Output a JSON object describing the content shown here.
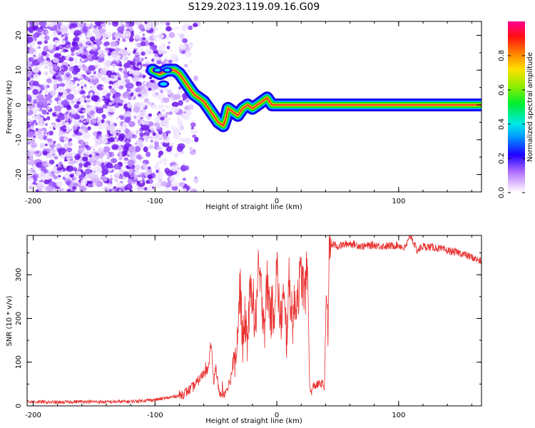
{
  "title": "S129.2023.119.09.16.G09",
  "colors": {
    "snr_line": "#e8302e",
    "ridge_high": "#e8302e",
    "ridge_mid": "#10e000",
    "ridge_low": "#1000f0",
    "background_speckle": "#8a3cf0"
  },
  "chart_data": [
    {
      "type": "heatmap",
      "title": "",
      "xlabel": "Height of straight line (km)",
      "ylabel": "Frequency (Hz)",
      "xlim": [
        -205,
        168
      ],
      "ylim": [
        -25,
        24
      ],
      "x_ticks": [
        "-200",
        "-100",
        "0",
        "100"
      ],
      "y_ticks": [
        "-20",
        "-10",
        "0",
        "10",
        "20"
      ],
      "colorbar": {
        "label": "Normalized spectral amplitude",
        "range": [
          0,
          1
        ],
        "ticks": [
          "0.0",
          "0.2",
          "0.4",
          "0.6",
          "0.8"
        ],
        "colormap": "rainbow (white-violet-blue-cyan-green-yellow-red-magenta)"
      },
      "frequency_ridge": {
        "x": [
          -102,
          -96,
          -90,
          -84,
          -80,
          -76,
          -72,
          -68,
          -64,
          -60,
          -56,
          -52,
          -48,
          -44,
          -42,
          -40,
          -36,
          -32,
          -28,
          -24,
          -20,
          -16,
          -12,
          -8,
          -4,
          0,
          10,
          40,
          80,
          120,
          168
        ],
        "y": [
          10,
          9,
          10,
          10,
          9,
          7,
          5,
          3,
          2,
          1,
          -1,
          -3,
          -5,
          -6,
          -4,
          -1,
          -2,
          -3,
          -1,
          0,
          -1,
          0,
          1,
          2,
          0,
          0,
          0,
          0,
          0,
          0,
          0
        ]
      }
    },
    {
      "type": "line",
      "title": "",
      "xlabel": "Height of straight line (km)",
      "ylabel": "SNR (10 * v/v)",
      "xlim": [
        -205,
        168
      ],
      "ylim": [
        0,
        390
      ],
      "x_ticks": [
        "-200",
        "-100",
        "0",
        "100"
      ],
      "y_ticks": [
        "0",
        "100",
        "200",
        "300"
      ],
      "series": [
        {
          "x": [
            -205,
            -180,
            -160,
            -140,
            -120,
            -100,
            -90,
            -80,
            -75,
            -70,
            -65,
            -60,
            -56,
            -54,
            -52,
            -50,
            -48,
            -45,
            -42,
            -38,
            -35,
            -32,
            -30,
            -28,
            -26,
            -24,
            -22,
            -20,
            -18,
            -15,
            -12,
            -10,
            -8,
            -5,
            -2,
            0,
            3,
            5,
            8,
            10,
            13,
            15,
            18,
            20,
            23,
            25,
            26,
            27,
            28,
            30,
            35,
            38,
            39,
            40,
            41,
            42,
            43,
            44,
            46,
            50,
            60,
            70,
            80,
            90,
            100,
            105,
            110,
            115,
            120,
            130,
            140,
            150,
            160,
            168
          ],
          "y": [
            10,
            8,
            10,
            9,
            10,
            14,
            18,
            24,
            30,
            40,
            55,
            75,
            85,
            150,
            50,
            90,
            40,
            20,
            35,
            60,
            110,
            180,
            280,
            130,
            200,
            150,
            250,
            270,
            170,
            310,
            240,
            190,
            280,
            210,
            230,
            320,
            180,
            250,
            160,
            280,
            200,
            230,
            270,
            300,
            250,
            320,
            200,
            40,
            30,
            45,
            50,
            50,
            40,
            180,
            250,
            150,
            370,
            360,
            370,
            365,
            372,
            365,
            368,
            365,
            368,
            360,
            390,
            355,
            365,
            362,
            355,
            350,
            340,
            330
          ]
        }
      ]
    }
  ]
}
